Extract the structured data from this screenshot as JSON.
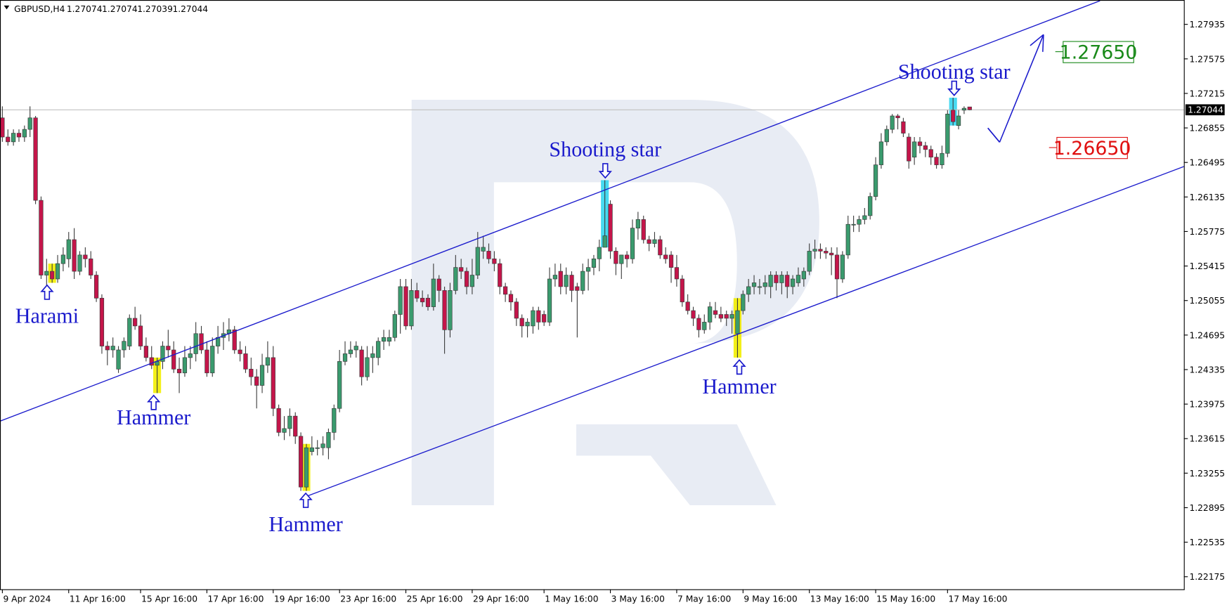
{
  "chart_data": {
    "type": "candlestick",
    "title": "GBPUSD,H4",
    "up_color": "#3a9b6e",
    "down_color": "#c4154a",
    "wick_color": "#3c3c3c",
    "xlim": [
      -0.43,
      213.76
    ],
    "ylim": [
      1.22044,
      1.28189
    ],
    "yticks": [
      1.22175,
      1.22535,
      1.22895,
      1.23255,
      1.23615,
      1.23975,
      1.24335,
      1.24695,
      1.25055,
      1.25415,
      1.25775,
      1.26135,
      1.26495,
      1.26855,
      1.27215,
      1.27575,
      1.27935
    ],
    "xticks": [
      {
        "value": 0,
        "label": "9 Apr 2024"
      },
      {
        "value": 12,
        "label": "11 Apr 16:00"
      },
      {
        "value": 25,
        "label": "15 Apr 16:00"
      },
      {
        "value": 37,
        "label": "17 Apr 16:00"
      },
      {
        "value": 49,
        "label": "19 Apr 16:00"
      },
      {
        "value": 61,
        "label": "23 Apr 16:00"
      },
      {
        "value": 73,
        "label": "25 Apr 16:00"
      },
      {
        "value": 85,
        "label": "29 Apr 16:00"
      },
      {
        "value": 98,
        "label": "1 May 16:00"
      },
      {
        "value": 110,
        "label": "3 May 16:00"
      },
      {
        "value": 122,
        "label": "7 May 16:00"
      },
      {
        "value": 134,
        "label": "9 May 16:00"
      },
      {
        "value": 146,
        "label": "13 May 16:00"
      },
      {
        "value": 158,
        "label": "15 May 16:00"
      },
      {
        "value": 171,
        "label": "17 May 16:00"
      }
    ],
    "candles": [
      [
        1.2696,
        1.2708,
        1.2671,
        1.2676
      ],
      [
        1.2676,
        1.2684,
        1.2667,
        1.2671
      ],
      [
        1.2671,
        1.2684,
        1.2667,
        1.268
      ],
      [
        1.268,
        1.2684,
        1.2671,
        1.2676
      ],
      [
        1.2676,
        1.2688,
        1.2671,
        1.2684
      ],
      [
        1.2684,
        1.2708,
        1.2676,
        1.2696
      ],
      [
        1.2696,
        1.2698,
        1.2606,
        1.261
      ],
      [
        1.261,
        1.2614,
        1.2528,
        1.2532
      ],
      [
        1.2532,
        1.2549,
        1.252,
        1.2536
      ],
      [
        1.2536,
        1.2544,
        1.2524,
        1.2528
      ],
      [
        1.2528,
        1.2553,
        1.2524,
        1.2544
      ],
      [
        1.2544,
        1.2561,
        1.2536,
        1.2553
      ],
      [
        1.2549,
        1.2577,
        1.254,
        1.2569
      ],
      [
        1.2569,
        1.2581,
        1.2528,
        1.2536
      ],
      [
        1.2536,
        1.2557,
        1.2532,
        1.2553
      ],
      [
        1.2553,
        1.2561,
        1.254,
        1.2549
      ],
      [
        1.2549,
        1.2557,
        1.2528,
        1.2532
      ],
      [
        1.2532,
        1.2536,
        1.2504,
        1.2508
      ],
      [
        1.2508,
        1.2512,
        1.245,
        1.2458
      ],
      [
        1.2458,
        1.2463,
        1.2438,
        1.2454
      ],
      [
        1.2454,
        1.2467,
        1.2446,
        1.2458
      ],
      [
        1.2434,
        1.2458,
        1.243,
        1.2454
      ],
      [
        1.2454,
        1.2467,
        1.2446,
        1.2463
      ],
      [
        1.2458,
        1.2491,
        1.2454,
        1.2487
      ],
      [
        1.2487,
        1.2499,
        1.2475,
        1.2479
      ],
      [
        1.2479,
        1.2491,
        1.2454,
        1.2458
      ],
      [
        1.2458,
        1.2467,
        1.2442,
        1.2446
      ],
      [
        1.2446,
        1.2458,
        1.2434,
        1.2438
      ],
      [
        1.2438,
        1.2446,
        1.2409,
        1.2442
      ],
      [
        1.2442,
        1.2463,
        1.2434,
        1.2458
      ],
      [
        1.2458,
        1.2475,
        1.2446,
        1.2454
      ],
      [
        1.2454,
        1.2463,
        1.243,
        1.2434
      ],
      [
        1.2434,
        1.2446,
        1.2409,
        1.243
      ],
      [
        1.243,
        1.2458,
        1.2426,
        1.2446
      ],
      [
        1.2446,
        1.2458,
        1.2434,
        1.245
      ],
      [
        1.245,
        1.2483,
        1.2442,
        1.2471
      ],
      [
        1.2471,
        1.2479,
        1.245,
        1.2454
      ],
      [
        1.2454,
        1.2463,
        1.2426,
        1.243
      ],
      [
        1.243,
        1.2467,
        1.2426,
        1.2458
      ],
      [
        1.2458,
        1.2479,
        1.245,
        1.2467
      ],
      [
        1.2467,
        1.2483,
        1.2454,
        1.2471
      ],
      [
        1.2471,
        1.2487,
        1.2463,
        1.2475
      ],
      [
        1.2475,
        1.2479,
        1.245,
        1.2454
      ],
      [
        1.2454,
        1.2463,
        1.2442,
        1.245
      ],
      [
        1.245,
        1.2458,
        1.243,
        1.2434
      ],
      [
        1.2434,
        1.2446,
        1.2417,
        1.2426
      ],
      [
        1.2426,
        1.2434,
        1.2393,
        1.2417
      ],
      [
        1.2417,
        1.245,
        1.2409,
        1.2438
      ],
      [
        1.2438,
        1.2463,
        1.243,
        1.2446
      ],
      [
        1.2446,
        1.2458,
        1.2385,
        1.2393
      ],
      [
        1.2393,
        1.2397,
        1.2364,
        1.2368
      ],
      [
        1.2368,
        1.2385,
        1.236,
        1.2372
      ],
      [
        1.2372,
        1.2393,
        1.2364,
        1.2385
      ],
      [
        1.2385,
        1.2389,
        1.2356,
        1.2364
      ],
      [
        1.2364,
        1.2368,
        1.2307,
        1.2311
      ],
      [
        1.2311,
        1.2356,
        1.2307,
        1.2352
      ],
      [
        1.2348,
        1.2364,
        1.2344,
        1.2352
      ],
      [
        1.2352,
        1.236,
        1.2344,
        1.2352
      ],
      [
        1.2352,
        1.2364,
        1.2344,
        1.2356
      ],
      [
        1.2352,
        1.2372,
        1.234,
        1.2368
      ],
      [
        1.2368,
        1.2397,
        1.236,
        1.2393
      ],
      [
        1.2393,
        1.2454,
        1.2389,
        1.2442
      ],
      [
        1.2442,
        1.2463,
        1.2438,
        1.245
      ],
      [
        1.245,
        1.2463,
        1.2446,
        1.2454
      ],
      [
        1.2454,
        1.2463,
        1.2446,
        1.2458
      ],
      [
        1.2454,
        1.2458,
        1.2417,
        1.2426
      ],
      [
        1.2426,
        1.2458,
        1.2422,
        1.2446
      ],
      [
        1.2446,
        1.2458,
        1.243,
        1.245
      ],
      [
        1.2446,
        1.2467,
        1.2438,
        1.2463
      ],
      [
        1.2463,
        1.2475,
        1.2454,
        1.2467
      ],
      [
        1.2463,
        1.2475,
        1.2458,
        1.2467
      ],
      [
        1.2467,
        1.2495,
        1.2463,
        1.2491
      ],
      [
        1.2491,
        1.2528,
        1.2471,
        1.252
      ],
      [
        1.252,
        1.2528,
        1.2475,
        1.2479
      ],
      [
        1.2479,
        1.2528,
        1.2475,
        1.2516
      ],
      [
        1.2516,
        1.2524,
        1.2504,
        1.2508
      ],
      [
        1.2508,
        1.2516,
        1.2499,
        1.2504
      ],
      [
        1.2508,
        1.2512,
        1.2495,
        1.2499
      ],
      [
        1.2499,
        1.2544,
        1.2495,
        1.2528
      ],
      [
        1.2528,
        1.2532,
        1.2504,
        1.2516
      ],
      [
        1.2516,
        1.252,
        1.245,
        1.2475
      ],
      [
        1.2475,
        1.2524,
        1.2467,
        1.2516
      ],
      [
        1.2516,
        1.2553,
        1.2512,
        1.254
      ],
      [
        1.254,
        1.2549,
        1.2528,
        1.2536
      ],
      [
        1.2536,
        1.254,
        1.2512,
        1.252
      ],
      [
        1.252,
        1.2549,
        1.2512,
        1.2532
      ],
      [
        1.2532,
        1.2577,
        1.2528,
        1.2561
      ],
      [
        1.2557,
        1.2573,
        1.2549,
        1.2561
      ],
      [
        1.2557,
        1.2565,
        1.2544,
        1.2549
      ],
      [
        1.2549,
        1.2557,
        1.2536,
        1.2544
      ],
      [
        1.2544,
        1.2549,
        1.2512,
        1.252
      ],
      [
        1.252,
        1.2524,
        1.2504,
        1.2512
      ],
      [
        1.2512,
        1.2516,
        1.2495,
        1.2504
      ],
      [
        1.2504,
        1.2508,
        1.2479,
        1.2487
      ],
      [
        1.2487,
        1.2491,
        1.2467,
        1.2479
      ],
      [
        1.2479,
        1.2487,
        1.2467,
        1.2483
      ],
      [
        1.2479,
        1.2499,
        1.2471,
        1.2495
      ],
      [
        1.2495,
        1.2499,
        1.2475,
        1.2483
      ],
      [
        1.2491,
        1.2495,
        1.2479,
        1.2483
      ],
      [
        1.2483,
        1.254,
        1.2479,
        1.2528
      ],
      [
        1.2528,
        1.2544,
        1.252,
        1.2532
      ],
      [
        1.2536,
        1.2544,
        1.2512,
        1.252
      ],
      [
        1.252,
        1.254,
        1.2512,
        1.2532
      ],
      [
        1.2532,
        1.2536,
        1.2504,
        1.2516
      ],
      [
        1.252,
        1.2524,
        1.2467,
        1.2516
      ],
      [
        1.2516,
        1.2544,
        1.2512,
        1.2536
      ],
      [
        1.2536,
        1.2549,
        1.2516,
        1.254
      ],
      [
        1.254,
        1.2553,
        1.2532,
        1.2549
      ],
      [
        1.2549,
        1.2569,
        1.2536,
        1.2561
      ],
      [
        1.2561,
        1.2631,
        1.2561,
        1.2573
      ],
      [
        1.2606,
        1.261,
        1.2549,
        1.2557
      ],
      [
        1.2557,
        1.2561,
        1.2532,
        1.2544
      ],
      [
        1.2544,
        1.2553,
        1.2528,
        1.2553
      ],
      [
        1.2553,
        1.2557,
        1.254,
        1.2549
      ],
      [
        1.2549,
        1.259,
        1.2544,
        1.2581
      ],
      [
        1.2581,
        1.2598,
        1.2569,
        1.259
      ],
      [
        1.259,
        1.2594,
        1.2565,
        1.2569
      ],
      [
        1.2569,
        1.2573,
        1.2557,
        1.2565
      ],
      [
        1.2565,
        1.2577,
        1.2561,
        1.2569
      ],
      [
        1.2569,
        1.2573,
        1.2549,
        1.2553
      ],
      [
        1.2553,
        1.2561,
        1.2544,
        1.2549
      ],
      [
        1.2553,
        1.2557,
        1.2524,
        1.254
      ],
      [
        1.254,
        1.2553,
        1.252,
        1.2528
      ],
      [
        1.2528,
        1.2532,
        1.2499,
        1.2504
      ],
      [
        1.2504,
        1.2512,
        1.2491,
        1.2495
      ],
      [
        1.2495,
        1.2499,
        1.2479,
        1.2487
      ],
      [
        1.2487,
        1.2491,
        1.2467,
        1.2475
      ],
      [
        1.2475,
        1.2491,
        1.2471,
        1.2483
      ],
      [
        1.2483,
        1.2504,
        1.2475,
        1.2499
      ],
      [
        1.2495,
        1.2504,
        1.2487,
        1.2491
      ],
      [
        1.2491,
        1.2499,
        1.2483,
        1.2487
      ],
      [
        1.2491,
        1.2495,
        1.2479,
        1.2487
      ],
      [
        1.2487,
        1.2495,
        1.2471,
        1.2491
      ],
      [
        1.2471,
        1.2508,
        1.2446,
        1.2495
      ],
      [
        1.2495,
        1.2516,
        1.2491,
        1.2512
      ],
      [
        1.2512,
        1.2528,
        1.2504,
        1.252
      ],
      [
        1.252,
        1.2532,
        1.2512,
        1.2524
      ],
      [
        1.252,
        1.2528,
        1.2512,
        1.252
      ],
      [
        1.252,
        1.2532,
        1.2512,
        1.2524
      ],
      [
        1.252,
        1.2536,
        1.2508,
        1.2532
      ],
      [
        1.2532,
        1.2536,
        1.2516,
        1.2524
      ],
      [
        1.2524,
        1.2536,
        1.2512,
        1.2532
      ],
      [
        1.2532,
        1.2536,
        1.2508,
        1.252
      ],
      [
        1.252,
        1.2532,
        1.2512,
        1.2528
      ],
      [
        1.2524,
        1.254,
        1.252,
        1.2532
      ],
      [
        1.2528,
        1.254,
        1.252,
        1.2536
      ],
      [
        1.2536,
        1.2565,
        1.2532,
        1.2557
      ],
      [
        1.2557,
        1.2569,
        1.2549,
        1.2559
      ],
      [
        1.2559,
        1.2565,
        1.2549,
        1.2557
      ],
      [
        1.2557,
        1.2561,
        1.2549,
        1.2555
      ],
      [
        1.2555,
        1.2561,
        1.2532,
        1.2553
      ],
      [
        1.2553,
        1.2561,
        1.2508,
        1.2528
      ],
      [
        1.2528,
        1.2557,
        1.2524,
        1.2553
      ],
      [
        1.2553,
        1.2594,
        1.2549,
        1.2585
      ],
      [
        1.2585,
        1.2594,
        1.2577,
        1.2585
      ],
      [
        1.2585,
        1.2594,
        1.2577,
        1.259
      ],
      [
        1.259,
        1.2602,
        1.2585,
        1.2594
      ],
      [
        1.2594,
        1.2618,
        1.259,
        1.2614
      ],
      [
        1.2614,
        1.2655,
        1.261,
        1.2647
      ],
      [
        1.2647,
        1.268,
        1.2643,
        1.2671
      ],
      [
        1.2671,
        1.2688,
        1.2667,
        1.2684
      ],
      [
        1.2684,
        1.27,
        1.268,
        1.2698
      ],
      [
        1.2698,
        1.27,
        1.2684,
        1.2696
      ],
      [
        1.2692,
        1.2696,
        1.2676,
        1.268
      ],
      [
        1.2676,
        1.268,
        1.2643,
        1.2651
      ],
      [
        1.2655,
        1.2676,
        1.2647,
        1.2671
      ],
      [
        1.2671,
        1.2676,
        1.2659,
        1.2667
      ],
      [
        1.2667,
        1.2671,
        1.2655,
        1.2663
      ],
      [
        1.2663,
        1.2667,
        1.2647,
        1.2655
      ],
      [
        1.2655,
        1.2659,
        1.2643,
        1.2647
      ],
      [
        1.2647,
        1.2667,
        1.2643,
        1.2659
      ],
      [
        1.2659,
        1.2704,
        1.2655,
        1.27
      ],
      [
        1.2704,
        1.2717,
        1.2688,
        1.2692
      ],
      [
        1.2688,
        1.2704,
        1.2684,
        1.2698
      ],
      [
        1.2704,
        1.2708,
        1.27,
        1.2706
      ],
      [
        1.27074,
        1.27074,
        1.27039,
        1.27044
      ]
    ],
    "targets": [
      {
        "value": 1.2765,
        "label": "1.27650",
        "color": "#1a8a1a"
      },
      {
        "value": 1.2665,
        "label": "1.26650",
        "color": "#e01010"
      }
    ],
    "annotations": [
      "Harami",
      "Hammer",
      "Hammer",
      "Shooting star",
      "Hammer",
      "Shooting star"
    ]
  }
}
